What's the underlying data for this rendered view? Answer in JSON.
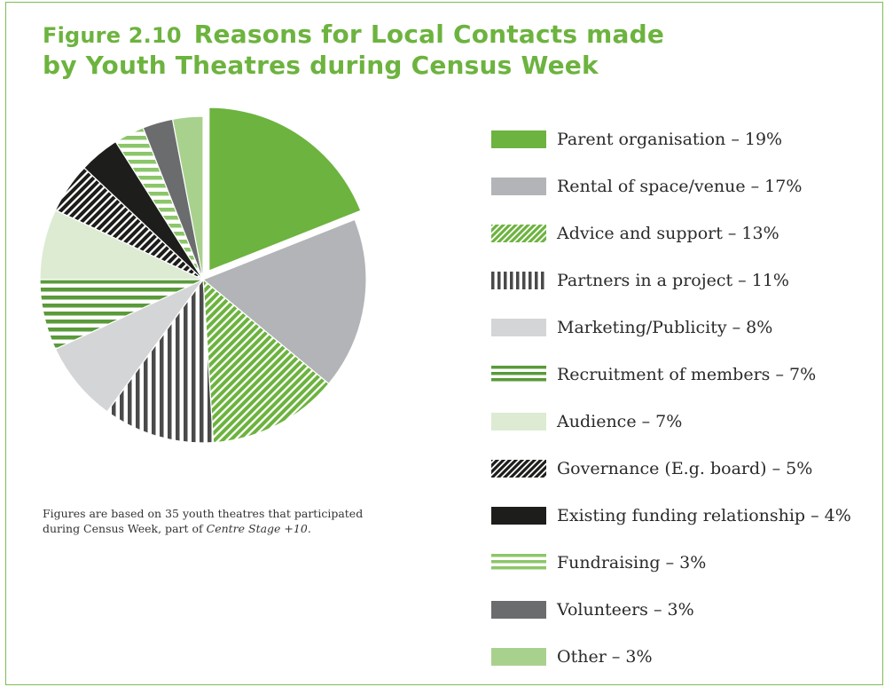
{
  "figure": {
    "number": "Figure 2.10",
    "title_line1": "Reasons for Local Contacts made",
    "title_line2": "by Youth Theatres during Census Week"
  },
  "note": {
    "line1": "Figures  are based on 35 youth theatres that participated",
    "line2_prefix": "during Census Week, part of ",
    "line2_italic": "Centre Stage +10",
    "line2_suffix": "."
  },
  "chart_data": {
    "type": "pie",
    "start": "12 o'clock, clockwise",
    "exploded": "Parent organisation",
    "slices": [
      {
        "label": "Parent organisation – 19%",
        "value": 19,
        "fill": "solid",
        "color": "#6db33f"
      },
      {
        "label": "Rental of space/venue – 17%",
        "value": 17,
        "fill": "solid",
        "color": "#b3b4b7"
      },
      {
        "label": "Advice and support – 13%",
        "value": 13,
        "fill": "diagonal-stripes",
        "color": "#6db33f"
      },
      {
        "label": "Partners in a project – 11%",
        "value": 11,
        "fill": "vertical-stripes",
        "color": "#4a4a4a"
      },
      {
        "label": "Marketing/Publicity – 8%",
        "value": 8,
        "fill": "solid",
        "color": "#d4d5d7"
      },
      {
        "label": "Recruitment of members – 7%",
        "value": 7,
        "fill": "horizontal-stripes",
        "color": "#5a9a3a"
      },
      {
        "label": "Audience – 7%",
        "value": 7,
        "fill": "solid",
        "color": "#dcebd2"
      },
      {
        "label": "Governance (E.g. board) – 5%",
        "value": 5,
        "fill": "diagonal-stripes",
        "color": "#1d1d1b"
      },
      {
        "label": "Existing funding relationship – 4%",
        "value": 4,
        "fill": "solid",
        "color": "#1d1d1b"
      },
      {
        "label": "Fundraising – 3%",
        "value": 3,
        "fill": "horizontal-stripes",
        "color": "#8cc66a"
      },
      {
        "label": "Volunteers – 3%",
        "value": 3,
        "fill": "solid",
        "color": "#6b6c6e"
      },
      {
        "label": "Other – 3%",
        "value": 3,
        "fill": "solid",
        "color": "#a9d18e"
      }
    ]
  }
}
